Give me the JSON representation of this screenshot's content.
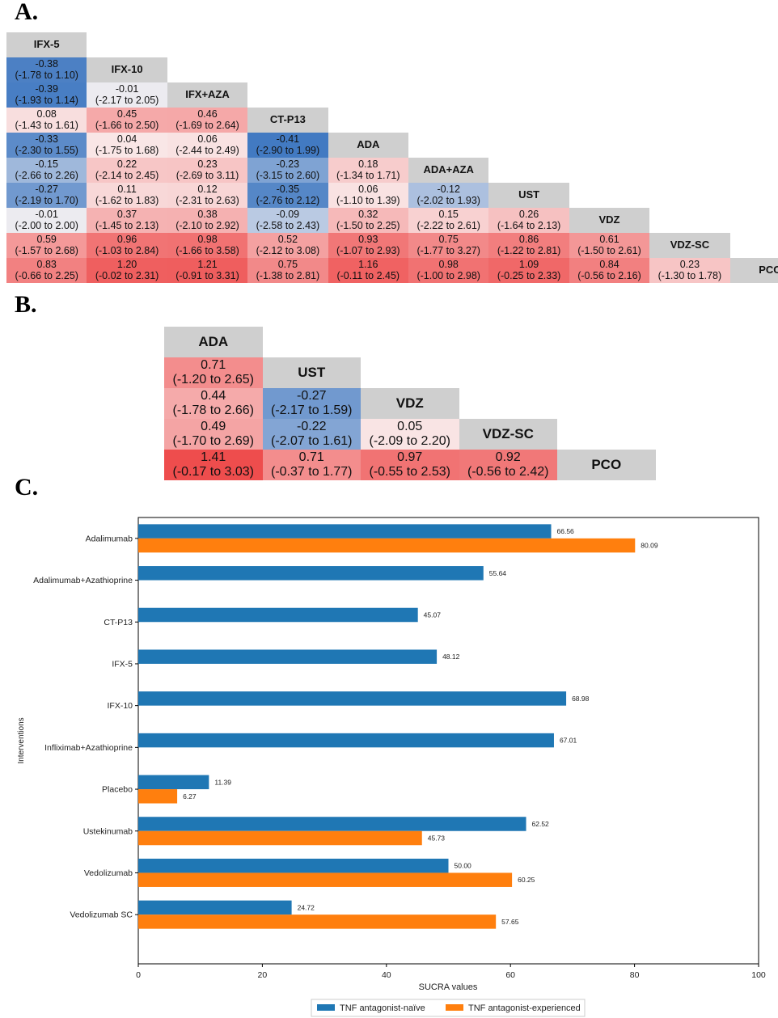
{
  "panels": {
    "a": "A.",
    "b": "B.",
    "c": "C."
  },
  "colors": {
    "header": "#cfcfcf",
    "negative": "#3f78c1",
    "positive": "#ee4c4c",
    "naive": "#1f77b4",
    "experienced": "#ff7f0e"
  },
  "league_a": {
    "headers": [
      "IFX-5",
      "IFX-10",
      "IFX+AZA",
      "CT-P13",
      "ADA",
      "ADA+AZA",
      "UST",
      "VDZ",
      "VDZ-SC",
      "PCO"
    ],
    "rows": [
      [],
      [
        {
          "v": "-0.38",
          "ci": "(-1.78 to 1.10)"
        }
      ],
      [
        {
          "v": "-0.39",
          "ci": "(-1.93 to 1.14)"
        },
        {
          "v": "-0.01",
          "ci": "(-2.17 to 2.05)"
        }
      ],
      [
        {
          "v": "0.08",
          "ci": "(-1.43 to 1.61)"
        },
        {
          "v": "0.45",
          "ci": "(-1.66 to 2.50)"
        },
        {
          "v": "0.46",
          "ci": "(-1.69 to 2.64)"
        }
      ],
      [
        {
          "v": "-0.33",
          "ci": "(-2.30 to 1.55)"
        },
        {
          "v": "0.04",
          "ci": "(-1.75 to 1.68)"
        },
        {
          "v": "0.06",
          "ci": "(-2.44 to 2.49)"
        },
        {
          "v": "-0.41",
          "ci": "(-2.90 to 1.99)"
        }
      ],
      [
        {
          "v": "-0.15",
          "ci": "(-2.66 to 2.26)"
        },
        {
          "v": "0.22",
          "ci": "(-2.14 to 2.45)"
        },
        {
          "v": "0.23",
          "ci": "(-2.69 to 3.11)"
        },
        {
          "v": "-0.23",
          "ci": "(-3.15 to 2.60)"
        },
        {
          "v": "0.18",
          "ci": "(-1.34 to 1.71)"
        }
      ],
      [
        {
          "v": "-0.27",
          "ci": "(-2.19 to 1.70)"
        },
        {
          "v": "0.11",
          "ci": "(-1.62 to 1.83)"
        },
        {
          "v": "0.12",
          "ci": "(-2.31 to 2.63)"
        },
        {
          "v": "-0.35",
          "ci": "(-2.76 to 2.12)"
        },
        {
          "v": "0.06",
          "ci": "(-1.10 to 1.39)"
        },
        {
          "v": "-0.12",
          "ci": "(-2.02 to 1.93)"
        }
      ],
      [
        {
          "v": "-0.01",
          "ci": "(-2.00 to 2.00)"
        },
        {
          "v": "0.37",
          "ci": "(-1.45 to 2.13)"
        },
        {
          "v": "0.38",
          "ci": "(-2.10 to 2.92)"
        },
        {
          "v": "-0.09",
          "ci": "(-2.58 to 2.43)"
        },
        {
          "v": "0.32",
          "ci": "(-1.50 to 2.25)"
        },
        {
          "v": "0.15",
          "ci": "(-2.22 to 2.61)"
        },
        {
          "v": "0.26",
          "ci": "(-1.64 to 2.13)"
        }
      ],
      [
        {
          "v": "0.59",
          "ci": "(-1.57 to 2.68)"
        },
        {
          "v": "0.96",
          "ci": "(-1.03 to 2.84)"
        },
        {
          "v": "0.98",
          "ci": "(-1.66 to 3.58)"
        },
        {
          "v": "0.52",
          "ci": "(-2.12 to 3.08)"
        },
        {
          "v": "0.93",
          "ci": "(-1.07 to 2.93)"
        },
        {
          "v": "0.75",
          "ci": "(-1.77 to 3.27)"
        },
        {
          "v": "0.86",
          "ci": "(-1.22 to 2.81)"
        },
        {
          "v": "0.61",
          "ci": "(-1.50 to 2.61)"
        }
      ],
      [
        {
          "v": "0.83",
          "ci": "(-0.66 to 2.25)"
        },
        {
          "v": "1.20",
          "ci": "(-0.02 to 2.31)"
        },
        {
          "v": "1.21",
          "ci": "(-0.91 to 3.31)"
        },
        {
          "v": "0.75",
          "ci": "(-1.38 to 2.81)"
        },
        {
          "v": "1.16",
          "ci": "(-0.11 to 2.45)"
        },
        {
          "v": "0.98",
          "ci": "(-1.00 to 2.98)"
        },
        {
          "v": "1.09",
          "ci": "(-0.25 to 2.33)"
        },
        {
          "v": "0.84",
          "ci": "(-0.56 to 2.16)"
        },
        {
          "v": "0.23",
          "ci": "(-1.30 to 1.78)"
        }
      ]
    ]
  },
  "league_b": {
    "headers": [
      "ADA",
      "UST",
      "VDZ",
      "VDZ-SC",
      "PCO"
    ],
    "rows": [
      [],
      [
        {
          "v": "0.71",
          "ci": "(-1.20 to 2.65)"
        }
      ],
      [
        {
          "v": "0.44",
          "ci": "(-1.78 to 2.66)"
        },
        {
          "v": "-0.27",
          "ci": "(-2.17 to 1.59)"
        }
      ],
      [
        {
          "v": "0.49",
          "ci": "(-1.70 to 2.69)"
        },
        {
          "v": "-0.22",
          "ci": "(-2.07 to 1.61)"
        },
        {
          "v": "0.05",
          "ci": "(-2.09 to 2.20)"
        }
      ],
      [
        {
          "v": "1.41",
          "ci": "(-0.17 to 3.03)"
        },
        {
          "v": "0.71",
          "ci": "(-0.37 to 1.77)"
        },
        {
          "v": "0.97",
          "ci": "(-0.55 to 2.53)"
        },
        {
          "v": "0.92",
          "ci": "(-0.56 to 2.42)"
        }
      ]
    ]
  },
  "chart_data": {
    "type": "bar",
    "orientation": "horizontal",
    "title": "",
    "xlabel": "SUCRA values",
    "ylabel": "Interventions",
    "xlim": [
      0,
      100
    ],
    "xticks": [
      0,
      20,
      40,
      60,
      80,
      100
    ],
    "legend_position": "bottom-center",
    "categories": [
      "Adalimumab",
      "Adalimumab+Azathioprine",
      "CT-P13",
      "IFX-5",
      "IFX-10",
      "Infliximab+Azathioprine",
      "Placebo",
      "Ustekinumab",
      "Vedolizumab",
      "Vedolizumab SC"
    ],
    "series": [
      {
        "name": "TNF antagonist-naïve",
        "values": [
          66.56,
          55.64,
          45.07,
          48.12,
          68.98,
          67.01,
          11.39,
          62.52,
          50.0,
          24.72
        ],
        "labels": [
          "66.56",
          "55.64",
          "45.07",
          "48.12",
          "68.98",
          "67.01",
          "11.39",
          "62.52",
          "50.00",
          "24.72"
        ]
      },
      {
        "name": "TNF antagonist-experienced",
        "values": [
          80.09,
          null,
          null,
          null,
          null,
          null,
          6.27,
          45.73,
          60.25,
          57.65
        ],
        "labels": [
          "80.09",
          "",
          "",
          "",
          "",
          "",
          "6.27",
          "45.73",
          "60.25",
          "57.65"
        ]
      }
    ]
  }
}
